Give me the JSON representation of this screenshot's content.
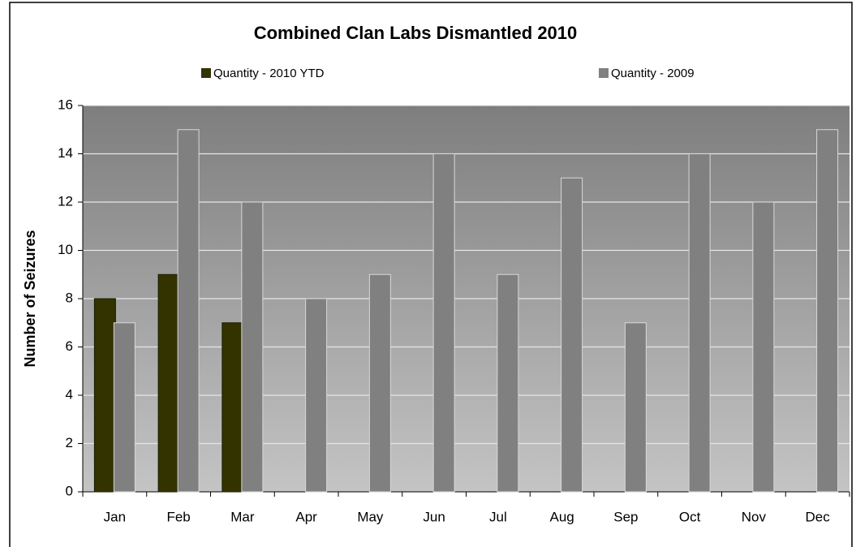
{
  "chart_data": {
    "type": "bar",
    "title": "Combined Clan Labs Dismantled 2010",
    "y_label": "Number of Seizures",
    "categories": [
      "Jan",
      "Feb",
      "Mar",
      "Apr",
      "May",
      "Jun",
      "Jul",
      "Aug",
      "Sep",
      "Oct",
      "Nov",
      "Dec"
    ],
    "series": [
      {
        "name": "Quantity - 2010 YTD",
        "color": "#333300",
        "values": [
          8,
          9,
          7,
          null,
          null,
          null,
          null,
          null,
          null,
          null,
          null,
          null
        ]
      },
      {
        "name": "Quantity - 2009",
        "color": "#808080",
        "values": [
          7,
          15,
          12,
          8,
          9,
          14,
          9,
          13,
          7,
          14,
          12,
          15
        ]
      }
    ],
    "ylim": [
      0,
      16
    ],
    "yticks": [
      0,
      2,
      4,
      6,
      8,
      10,
      12,
      14,
      16
    ],
    "grid": true,
    "legend": "top"
  }
}
